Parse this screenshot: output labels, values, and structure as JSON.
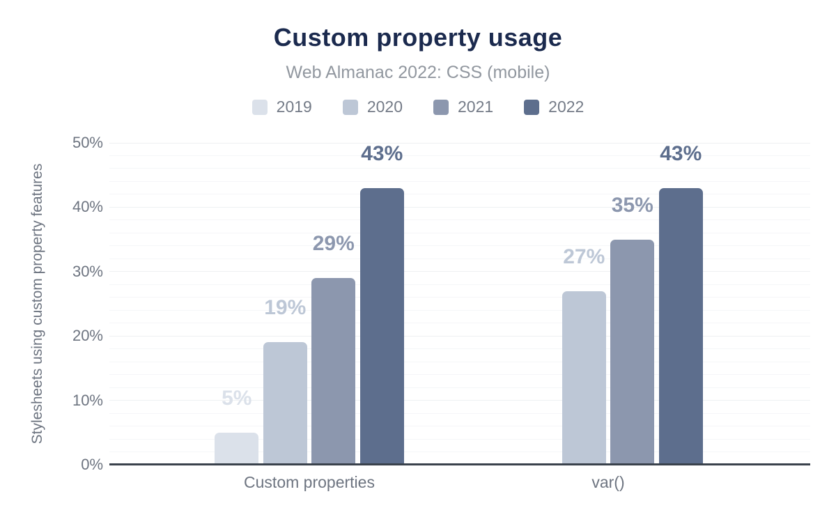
{
  "chart_data": {
    "type": "bar",
    "title": "Custom property usage",
    "subtitle": "Web Almanac 2022: CSS (mobile)",
    "ylabel": "Stylesheets using custom property features",
    "xlabel": "",
    "categories": [
      "Custom properties",
      "var()"
    ],
    "series": [
      {
        "name": "2019",
        "color": "#dbe1ea",
        "values": [
          5,
          null
        ]
      },
      {
        "name": "2020",
        "color": "#bdc7d6",
        "values": [
          19,
          27
        ]
      },
      {
        "name": "2021",
        "color": "#8c97ae",
        "values": [
          29,
          35
        ]
      },
      {
        "name": "2022",
        "color": "#5d6e8d",
        "values": [
          43,
          43
        ]
      }
    ],
    "value_labels": [
      [
        "5%",
        "19%",
        "29%",
        "43%"
      ],
      [
        null,
        "27%",
        "35%",
        "43%"
      ]
    ],
    "value_suffix": "%",
    "ylim": [
      0,
      50
    ],
    "yticks": [
      0,
      10,
      20,
      30,
      40,
      50
    ],
    "ytick_labels": [
      "0%",
      "10%",
      "20%",
      "30%",
      "40%",
      "50%"
    ],
    "grid": "horizontal minor lines every 2%, major every 10%",
    "legend_position": "top",
    "colors": {
      "title": "#1b2a4e",
      "subtitle": "#91979f",
      "axis_text": "#6d7480",
      "axis_line": "#3a424c",
      "background": "#ffffff"
    }
  }
}
